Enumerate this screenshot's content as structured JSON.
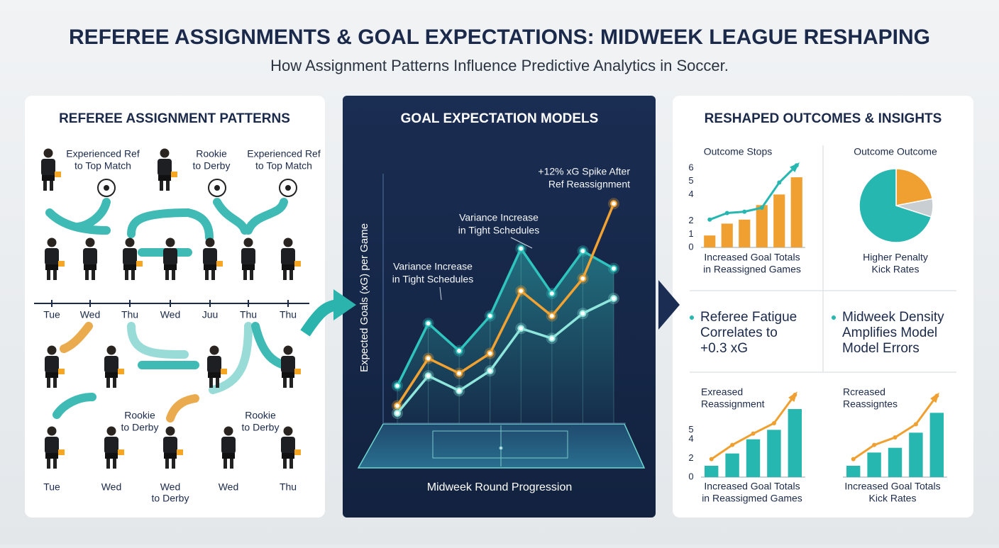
{
  "header": {
    "title": "REFEREE ASSIGNMENTS & GOAL EXPECTATIONS: MIDWEEK LEAGUE RESHAPING",
    "subtitle": "How Assignment Patterns Influence Predictive Analytics in Soccer."
  },
  "left_panel": {
    "title": "REFEREE ASSIGNMENT PATTERNS",
    "top_labels": [
      [
        "Experienced Ref",
        "to Top Match"
      ],
      [
        "Rookie",
        "to Derby"
      ],
      [
        "Experienced Ref",
        "to Top Match"
      ]
    ],
    "days_row1": [
      "Tue",
      "Wed",
      "Thu",
      "Wed",
      "Juu",
      "Thu",
      "Thu"
    ],
    "mid_labels": [
      [
        "Rookie",
        "to Derby"
      ],
      [
        "Rookie",
        "to Derby"
      ]
    ],
    "days_row2": [
      "Tue",
      "Wed",
      "Wed",
      "Wed",
      "Thu"
    ],
    "day_note": "to Derby"
  },
  "center_chart": {
    "type": "line",
    "title": "GOAL EXPECTATION MODELS",
    "y_label": "Expected Goals (xG) per Game",
    "x_label": "Midweek Round Progression",
    "annotations": [
      [
        "+12% xG Spike After",
        "Ref Reassignment"
      ],
      [
        "Variance Increase",
        "in Tight Schedules"
      ],
      [
        "Variance Increase",
        "in Tight Schedules"
      ]
    ],
    "ylim": [
      0,
      10
    ],
    "series": [
      {
        "color": "#2fc4bd",
        "values": [
          1.5,
          4.0,
          2.9,
          4.3,
          7.0,
          5.2,
          6.9,
          6.2
        ]
      },
      {
        "color": "#f2a231",
        "values": [
          0.7,
          2.6,
          2.0,
          2.8,
          5.3,
          4.3,
          5.8,
          8.8
        ]
      },
      {
        "color": "#8ee6dc",
        "values": [
          0.4,
          1.9,
          1.3,
          2.1,
          3.8,
          3.4,
          4.4,
          5.0
        ]
      }
    ]
  },
  "right_panel": {
    "title": "RESHAPED OUTCOMES & INSIGHTS",
    "chart_a": {
      "type": "bar",
      "title": [
        "Outcome Stops"
      ],
      "caption": [
        "Increased Goal Totals",
        "in Reassigned Games"
      ],
      "ylim": [
        0,
        6
      ],
      "yticks": [
        0,
        1,
        2,
        4,
        5,
        6
      ],
      "color": "#f0a030",
      "line_color": "#26b7b0",
      "values": [
        0.9,
        1.8,
        2.1,
        3.2,
        4.0,
        5.3
      ],
      "trend": [
        2.1,
        2.6,
        2.7,
        3.0,
        4.9,
        6.2
      ]
    },
    "chart_b": {
      "type": "pie",
      "title": "Outcome Outcome",
      "caption": [
        "Higher Penalty",
        "Kick Rates"
      ],
      "values": [
        22,
        8,
        70
      ],
      "colors": [
        "#f0a030",
        "#c9ced3",
        "#26b7b0"
      ]
    },
    "bullets": [
      [
        "Referee Fatigue",
        "Correlates to",
        "+0.3 xG"
      ],
      [
        "Midweek Density",
        "Amplifies Model",
        "Model Errors"
      ]
    ],
    "chart_c": {
      "type": "bar",
      "title": [
        "Exreased",
        "Reassignment"
      ],
      "caption": [
        "Increased Goal Totals",
        "in Reassigmed Games"
      ],
      "ylim": [
        0,
        9
      ],
      "yticks": [
        0,
        2,
        4,
        5
      ],
      "color": "#26b7b0",
      "line_color": "#f0a030",
      "values": [
        1.2,
        2.5,
        4.0,
        5.0,
        7.2
      ],
      "trend": [
        1.9,
        3.4,
        4.6,
        5.7,
        8.7
      ]
    },
    "chart_d": {
      "type": "bar",
      "title": [
        "Rcreased",
        "Reassigntes"
      ],
      "caption": [
        "Increased Goal Totals",
        "Kick Rates"
      ],
      "ylim": [
        0,
        9
      ],
      "yticks": [],
      "color": "#26b7b0",
      "line_color": "#f0a030",
      "values": [
        1.2,
        2.6,
        3.1,
        4.7,
        6.8
      ],
      "trend": [
        1.9,
        3.4,
        4.2,
        5.6,
        8.6
      ]
    }
  }
}
